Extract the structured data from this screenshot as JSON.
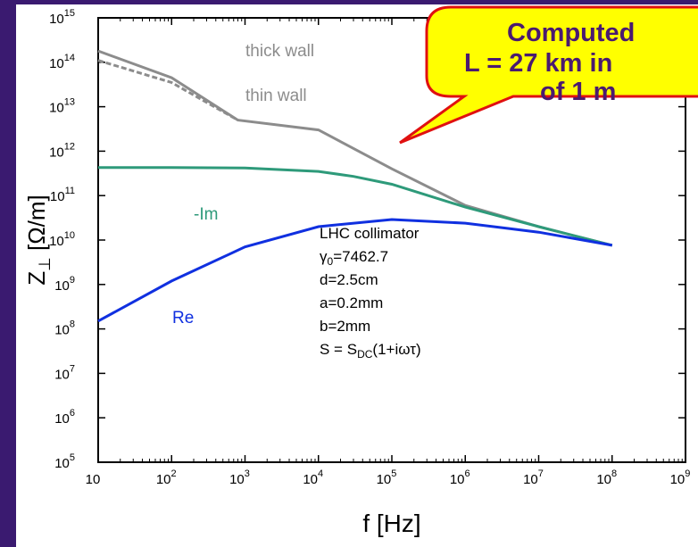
{
  "chart_data": {
    "type": "line",
    "log_x": true,
    "log_y": true,
    "x_label": "f [Hz]",
    "y_label": {
      "main": "Z",
      "sub": "⊥",
      "rest": " [Ω/m]"
    },
    "xlim": [
      10,
      1000000000
    ],
    "ylim": [
      100000,
      1000000000000000
    ],
    "xticks": [
      {
        "value": 10,
        "label": "10",
        "exp": ""
      },
      {
        "value": 100,
        "label": "10",
        "exp": "2"
      },
      {
        "value": 1000,
        "label": "10",
        "exp": "3"
      },
      {
        "value": 10000,
        "label": "10",
        "exp": "4"
      },
      {
        "value": 100000,
        "label": "10",
        "exp": "5"
      },
      {
        "value": 1000000,
        "label": "10",
        "exp": "6"
      },
      {
        "value": 10000000,
        "label": "10",
        "exp": "7"
      },
      {
        "value": 100000000,
        "label": "10",
        "exp": "8"
      },
      {
        "value": 1000000000,
        "label": "10",
        "exp": "9"
      }
    ],
    "yticks": [
      {
        "value": 100000,
        "label": "10",
        "exp": "5"
      },
      {
        "value": 1000000,
        "label": "10",
        "exp": "6"
      },
      {
        "value": 10000000,
        "label": "10",
        "exp": "7"
      },
      {
        "value": 100000000,
        "label": "10",
        "exp": "8"
      },
      {
        "value": 1000000000,
        "label": "10",
        "exp": "9"
      },
      {
        "value": 10000000000,
        "label": "10",
        "exp": "10"
      },
      {
        "value": 100000000000,
        "label": "10",
        "exp": "11"
      },
      {
        "value": 1000000000000,
        "label": "10",
        "exp": "12"
      },
      {
        "value": 10000000000000,
        "label": "10",
        "exp": "13"
      },
      {
        "value": 100000000000000,
        "label": "10",
        "exp": "14"
      },
      {
        "value": 1000000000000000,
        "label": "10",
        "exp": "15"
      }
    ],
    "series": [
      {
        "name": "thick wall",
        "color": "#8c8c8c",
        "dash": false,
        "x": [
          10,
          100,
          800,
          10000,
          100000,
          1000000,
          10000000,
          100000000
        ],
        "values": [
          180000000000000,
          45000000000000,
          5000000000000,
          3000000000000,
          400000000000,
          60000000000,
          20000000000,
          7600000000
        ]
      },
      {
        "name": "thin wall",
        "color": "#8c8c8c",
        "dash": true,
        "x": [
          10,
          100,
          800
        ],
        "values": [
          110000000000000,
          35000000000000,
          5000000000000
        ]
      },
      {
        "name": "-Im",
        "color": "#2e9a7a",
        "dash": false,
        "x": [
          10,
          100,
          1000,
          10000,
          30000,
          100000,
          1000000,
          10000000,
          100000000
        ],
        "values": [
          430000000000,
          430000000000,
          420000000000,
          350000000000,
          270000000000,
          180000000000,
          55000000000,
          20000000000,
          7600000000
        ]
      },
      {
        "name": "Re",
        "color": "#1030e0",
        "dash": false,
        "x": [
          10,
          100,
          1000,
          10000,
          100000,
          1000000,
          10000000,
          100000000
        ],
        "values": [
          150000000,
          1200000000,
          7000000000,
          20000000000,
          29000000000,
          24000000000,
          15000000000,
          7600000000
        ]
      }
    ],
    "params": [
      "LHC collimator",
      {
        "main": "γ",
        "sub": "0",
        "rest": "=7462.7"
      },
      "d=2.5cm",
      "a=0.2mm",
      "b=2mm",
      {
        "main": "S = S",
        "sub": "DC",
        "rest": "(1+iωτ)"
      }
    ],
    "callout": [
      "Computed",
      "L = 27 km in",
      "of 1 m"
    ]
  }
}
